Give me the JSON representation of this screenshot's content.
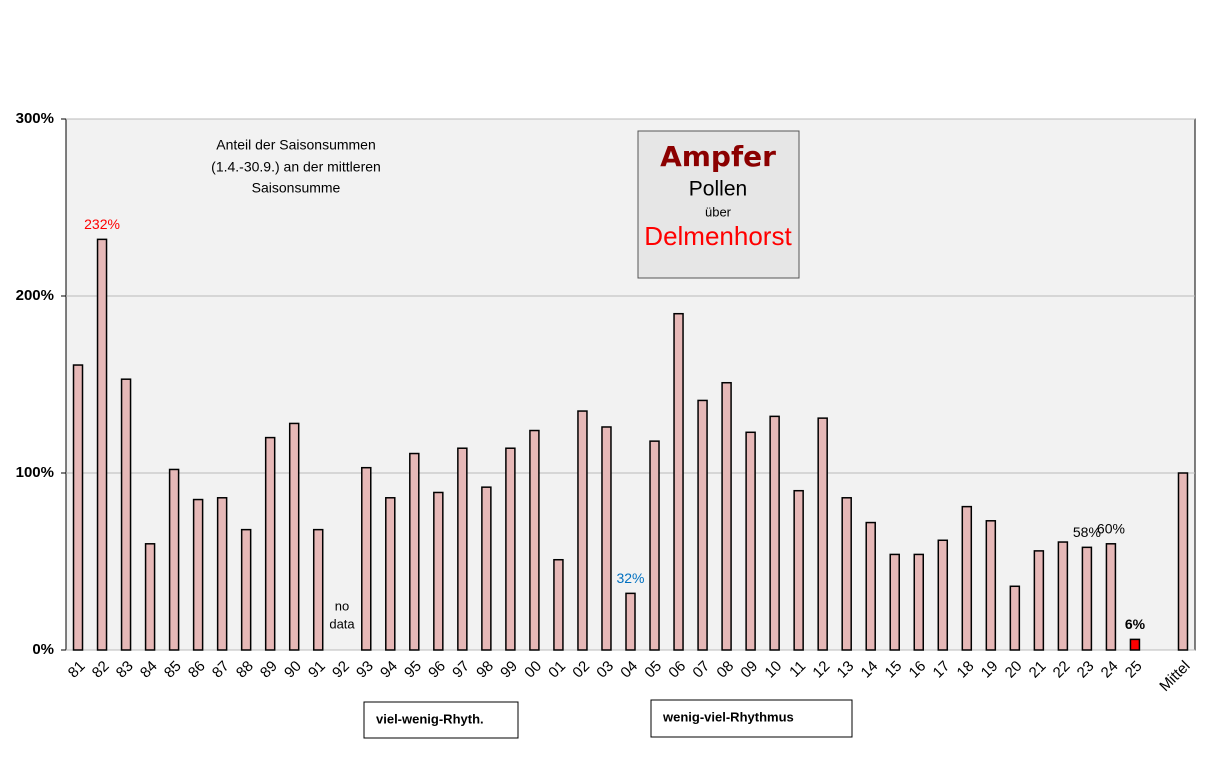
{
  "chart_data": {
    "type": "bar",
    "annotation_lines": [
      "Anteil der Saisonsummen",
      "(1.4.-30.9.) an der mittleren",
      "Saisonsumme"
    ],
    "title_box": {
      "plant": "Ampfer",
      "kind": "Pollen",
      "preposition": "über",
      "location": "Delmenhorst"
    },
    "no_data_label": [
      "no",
      "data"
    ],
    "rhythm_labels": [
      "viel-wenig-Rhyth.",
      "wenig-viel-Rhythmus"
    ],
    "categories": [
      "81",
      "82",
      "83",
      "84",
      "85",
      "86",
      "87",
      "88",
      "89",
      "90",
      "91",
      "92",
      "93",
      "94",
      "95",
      "96",
      "97",
      "98",
      "99",
      "00",
      "01",
      "02",
      "03",
      "04",
      "05",
      "06",
      "07",
      "08",
      "09",
      "10",
      "11",
      "12",
      "13",
      "14",
      "15",
      "16",
      "17",
      "18",
      "19",
      "20",
      "21",
      "22",
      "23",
      "24",
      "25",
      null,
      "Mittel"
    ],
    "values": [
      161,
      232,
      153,
      60,
      102,
      85,
      86,
      68,
      120,
      128,
      68,
      null,
      103,
      86,
      111,
      89,
      114,
      92,
      114,
      124,
      51,
      135,
      126,
      32,
      118,
      190,
      141,
      151,
      123,
      132,
      90,
      131,
      86,
      72,
      54,
      54,
      62,
      81,
      73,
      36,
      56,
      61,
      58,
      60,
      6,
      null,
      100
    ],
    "value_labels": [
      null,
      "232%",
      null,
      null,
      null,
      null,
      null,
      null,
      null,
      null,
      null,
      null,
      null,
      null,
      null,
      null,
      null,
      null,
      null,
      null,
      null,
      null,
      null,
      "32%",
      null,
      null,
      null,
      null,
      null,
      null,
      null,
      null,
      null,
      null,
      null,
      null,
      null,
      null,
      null,
      null,
      null,
      null,
      "58%",
      "60%",
      "6%",
      null,
      null
    ],
    "value_label_colors": [
      null,
      "#ff0000",
      null,
      null,
      null,
      null,
      null,
      null,
      null,
      null,
      null,
      null,
      null,
      null,
      null,
      null,
      null,
      null,
      null,
      null,
      null,
      null,
      null,
      "#0070c0",
      null,
      null,
      null,
      null,
      null,
      null,
      null,
      null,
      null,
      null,
      null,
      null,
      null,
      null,
      null,
      null,
      null,
      null,
      "#000000",
      "#000000",
      "#000000",
      null,
      null
    ],
    "color": "#e6b8b7",
    "highlight_color": "#ff0000",
    "highlight_index": 44,
    "ylim": [
      0,
      300
    ],
    "yticks": [
      {
        "value": 0,
        "label": "0%"
      },
      {
        "value": 100,
        "label": "100%"
      },
      {
        "value": 200,
        "label": "200%"
      },
      {
        "value": 300,
        "label": "300%"
      }
    ],
    "grid": true
  }
}
